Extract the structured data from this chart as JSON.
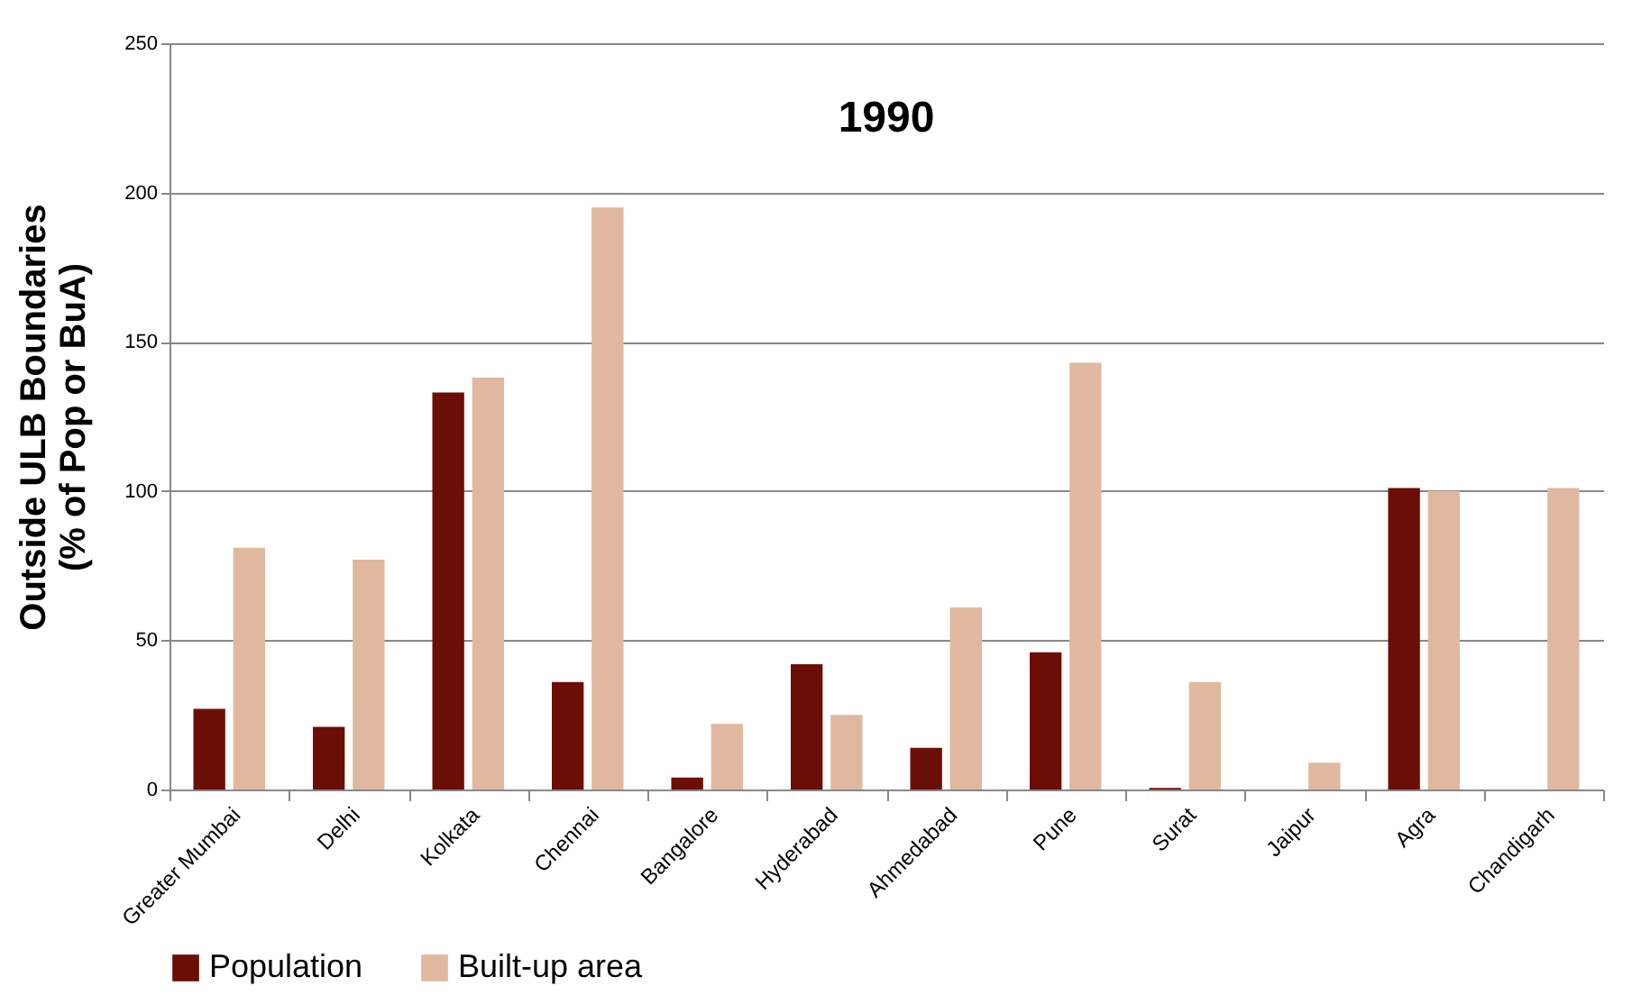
{
  "chart_data": {
    "type": "bar",
    "title": "1990",
    "ylabel": "Outside ULB Boundaries\n(% of Pop or BuA)",
    "categories": [
      "Greater Mumbai",
      "Delhi",
      "Kolkata",
      "Chennai",
      "Bangalore",
      "Hyderabad",
      "Ahmedabad",
      "Pune",
      "Surat",
      "Jaipur",
      "Agra",
      "Chandigarh"
    ],
    "series": [
      {
        "name": "Population",
        "color": "#6b0f06",
        "values": [
          27,
          21,
          133,
          36,
          4,
          42,
          14,
          46,
          0.5,
          0,
          101,
          0
        ]
      },
      {
        "name": "Built-up area",
        "color": "#e0b8a0",
        "values": [
          81,
          77,
          138,
          195,
          22,
          25,
          61,
          143,
          36,
          9,
          100,
          101
        ]
      }
    ],
    "ylim": [
      0,
      250
    ],
    "yticks": [
      0,
      50,
      100,
      150,
      200,
      250
    ],
    "grid": "y",
    "legend": "bottom"
  }
}
